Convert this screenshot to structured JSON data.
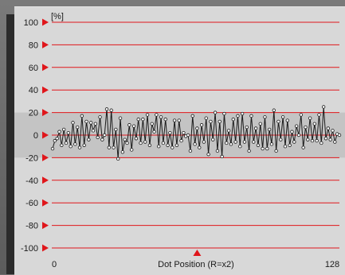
{
  "chart_data": {
    "type": "line",
    "unit_label": "[%]",
    "xlabel": "Dot Position (R=x2)",
    "x_start_label": "0",
    "x_end_label": "128",
    "ylim": [
      -100,
      100
    ],
    "y_ticks": [
      "100",
      "80",
      "60",
      "40",
      "20",
      "0",
      "-20",
      "-40",
      "-60",
      "-80",
      "-100"
    ],
    "tolerance_band": [
      -20,
      20
    ],
    "marker_position": 64,
    "colors": {
      "lines": "#e0161b",
      "band": "#c4c4c4",
      "series": "#1a1a1a"
    },
    "series": [
      {
        "values": [
          -12,
          -5,
          -3,
          3,
          -9,
          5,
          -7,
          2,
          -10,
          11,
          -8,
          7,
          -11,
          17,
          -9,
          12,
          -4,
          11,
          4,
          10,
          -2,
          16,
          -4,
          0,
          23,
          -11,
          22,
          -11,
          5,
          -21,
          15,
          -15,
          -4,
          -7,
          9,
          -13,
          8,
          -3,
          14,
          -7,
          14,
          -6,
          18,
          -9,
          10,
          3,
          18,
          -10,
          16,
          -7,
          14,
          -9,
          2,
          -11,
          13,
          -9,
          13,
          -5,
          2,
          -1,
          0,
          -14,
          17,
          -8,
          6,
          -11,
          9,
          -6,
          15,
          -17,
          12,
          -4,
          20,
          -14,
          12,
          -19,
          19,
          -7,
          4,
          -8,
          14,
          -6,
          17,
          -10,
          19,
          -6,
          7,
          -14,
          17,
          -6,
          6,
          -9,
          10,
          -12,
          16,
          -12,
          5,
          -8,
          22,
          -14,
          12,
          -4,
          16,
          -10,
          13,
          -9,
          3,
          -6,
          8,
          0,
          18,
          -11,
          7,
          -4,
          15,
          -5,
          10,
          -5,
          18,
          -7,
          25,
          -3,
          6,
          -4,
          4,
          -6,
          1,
          0
        ]
      }
    ]
  }
}
